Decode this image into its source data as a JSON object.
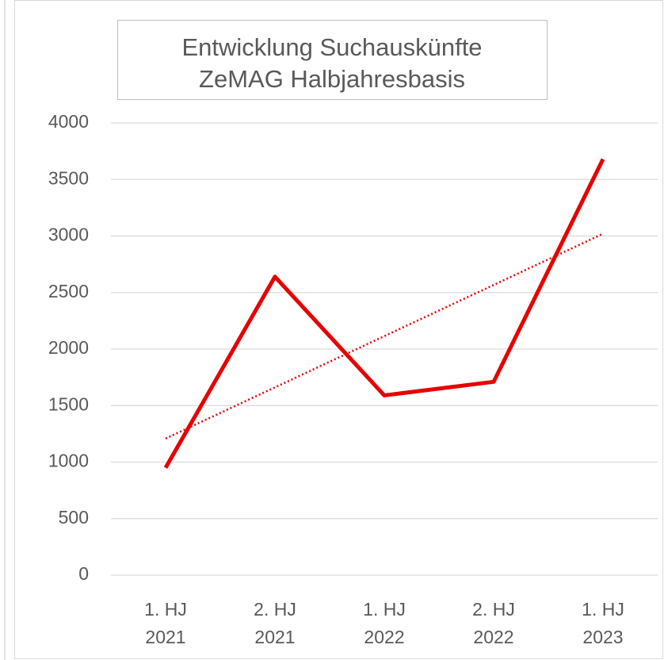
{
  "chart_data": {
    "type": "line",
    "title": [
      "Entwicklung Suchauskünfte",
      "ZeMAG Halbjahresbasis"
    ],
    "categories": [
      [
        "1. HJ",
        "2021"
      ],
      [
        "2. HJ",
        "2021"
      ],
      [
        "1. HJ",
        "2022"
      ],
      [
        "2. HJ",
        "2022"
      ],
      [
        "1. HJ",
        "2023"
      ]
    ],
    "values": [
      950,
      2640,
      1590,
      1710,
      3680
    ],
    "color": "#e60000",
    "trendline": {
      "kind": "linear",
      "color": "#e60000"
    },
    "ylim": [
      0,
      4000
    ],
    "yticks": [
      0,
      500,
      1000,
      1500,
      2000,
      2500,
      3000,
      3500,
      4000
    ],
    "grid": true
  }
}
